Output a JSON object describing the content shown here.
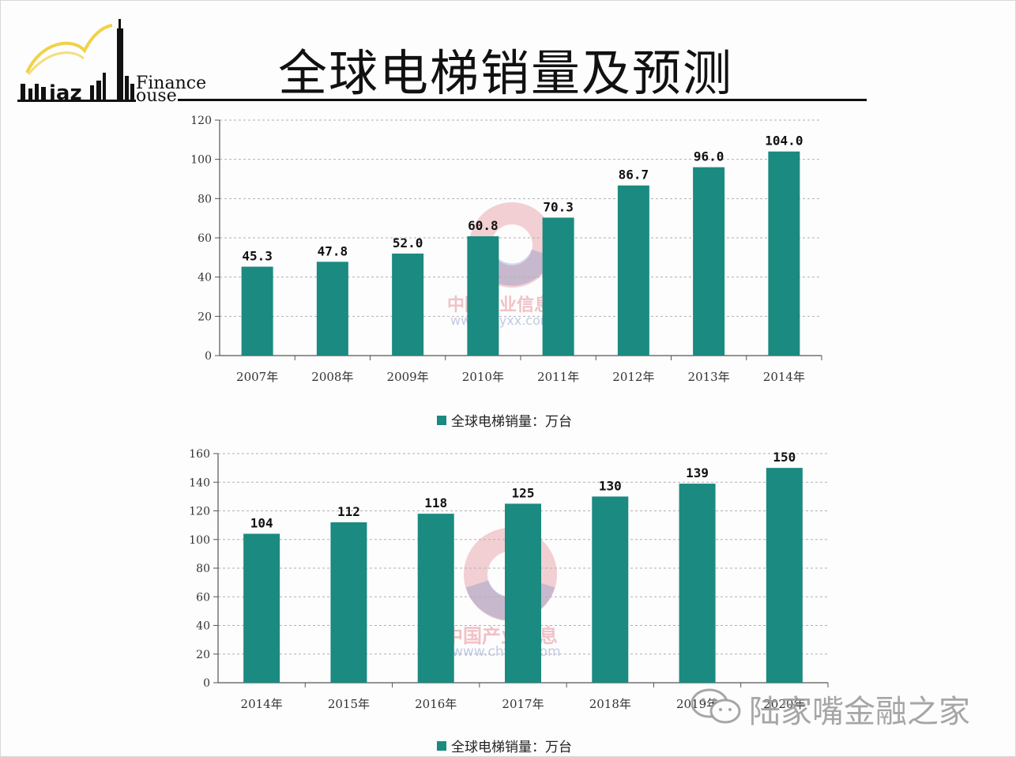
{
  "slide": {
    "title": "全球电梯销量及预测",
    "logo": {
      "word": "Finance",
      "word2": "ouse",
      "brand": "LuJiaZui"
    }
  },
  "colors": {
    "bar": "#1b8a80",
    "axis": "#555555",
    "grid": "#b0b0b0",
    "text": "#111111"
  },
  "chart_data": [
    {
      "type": "bar",
      "categories": [
        "2007年",
        "2008年",
        "2009年",
        "2010年",
        "2011年",
        "2012年",
        "2013年",
        "2014年"
      ],
      "values": [
        45.3,
        47.8,
        52.0,
        60.8,
        70.3,
        86.7,
        96.0,
        104.0
      ],
      "value_labels": [
        "45.3",
        "47.8",
        "52.0",
        "60.8",
        "70.3",
        "86.7",
        "96.0",
        "104.0"
      ],
      "yticks": [
        "0",
        "20",
        "40",
        "60",
        "80",
        "100",
        "120"
      ],
      "ylim": [
        0,
        120
      ],
      "legend": "全球电梯销量：万台",
      "grid": true
    },
    {
      "type": "bar",
      "categories": [
        "2014年",
        "2015年",
        "2016年",
        "2017年",
        "2018年",
        "2019年",
        "2020年"
      ],
      "values": [
        104,
        112,
        118,
        125,
        130,
        139,
        150
      ],
      "value_labels": [
        "104",
        "112",
        "118",
        "125",
        "130",
        "139",
        "150"
      ],
      "yticks": [
        "0",
        "20",
        "40",
        "60",
        "80",
        "100",
        "120",
        "140",
        "160"
      ],
      "ylim": [
        0,
        160
      ],
      "legend": "全球电梯销量：万台",
      "grid": true
    }
  ],
  "watermarks": {
    "chart1": {
      "cn": "中国产业信息",
      "url": "www.chyxx.com"
    },
    "chart2": {
      "cn": "中国产业信息",
      "url": "www.chyxx.com"
    },
    "wechat": "陆家嘴金融之家"
  }
}
